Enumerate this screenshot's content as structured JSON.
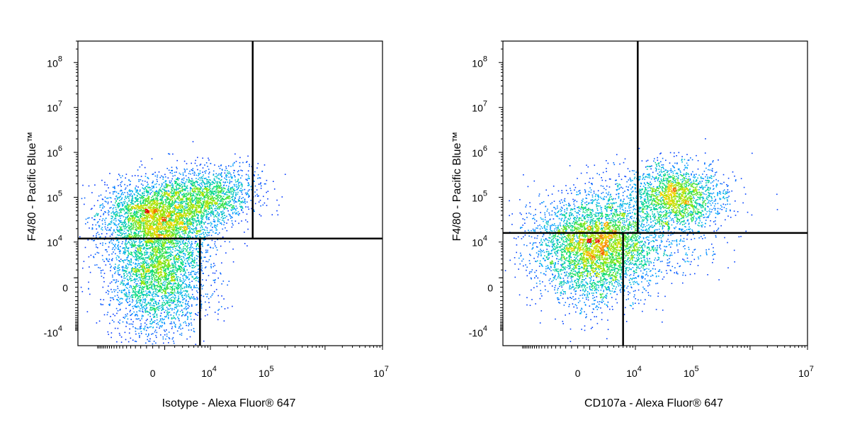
{
  "chart_data": [
    {
      "type": "scatter",
      "subtype": "flow-cytometry-density-quadrant-plot",
      "xlabel": "Isotype - Alexa Fluor® 647",
      "ylabel": "F4/80 - Pacific Blue™",
      "x_scale": "biexponential",
      "y_scale": "biexponential",
      "xlim": [
        -20000,
        10000000
      ],
      "ylim": [
        -20000,
        300000000
      ],
      "x_ticks": [
        {
          "value": 0,
          "base": "0",
          "exp": ""
        },
        {
          "value": 10000,
          "base": "10",
          "exp": "4"
        },
        {
          "value": 100000,
          "base": "10",
          "exp": "5"
        },
        {
          "value": 10000000,
          "base": "10",
          "exp": "7"
        }
      ],
      "y_ticks": [
        {
          "value": -10000,
          "base": "-10",
          "exp": "4"
        },
        {
          "value": 0,
          "base": "0",
          "exp": ""
        },
        {
          "value": 10000,
          "base": "10",
          "exp": "4"
        },
        {
          "value": 100000,
          "base": "10",
          "exp": "5"
        },
        {
          "value": 1000000,
          "base": "10",
          "exp": "6"
        },
        {
          "value": 10000000,
          "base": "10",
          "exp": "7"
        },
        {
          "value": 100000000,
          "base": "10",
          "exp": "8"
        }
      ],
      "quadrant_gate": {
        "x_upper": 55000,
        "x_lower": 6500,
        "y": 12000
      },
      "populations": [
        {
          "x_center": 600,
          "y_center": 45000,
          "x_spread": 0.38,
          "y_spread": 0.22,
          "count": 2600
        },
        {
          "x_center": 12000,
          "y_center": 120000,
          "x_spread": 0.3,
          "y_spread": 0.18,
          "count": 1100
        },
        {
          "x_center": 350,
          "y_center": 2500,
          "x_spread": 0.33,
          "y_spread": 0.45,
          "count": 3600
        }
      ],
      "grid": false,
      "legend": "none"
    },
    {
      "type": "scatter",
      "subtype": "flow-cytometry-density-quadrant-plot",
      "xlabel": "CD107a - Alexa Fluor® 647",
      "ylabel": "F4/80 - Pacific Blue™",
      "x_scale": "biexponential",
      "y_scale": "biexponential",
      "xlim": [
        -20000,
        10000000
      ],
      "ylim": [
        -20000,
        300000000
      ],
      "x_ticks": [
        {
          "value": 0,
          "base": "0",
          "exp": ""
        },
        {
          "value": 10000,
          "base": "10",
          "exp": "4"
        },
        {
          "value": 100000,
          "base": "10",
          "exp": "5"
        },
        {
          "value": 10000000,
          "base": "10",
          "exp": "7"
        }
      ],
      "y_ticks": [
        {
          "value": -10000,
          "base": "-10",
          "exp": "4"
        },
        {
          "value": 0,
          "base": "0",
          "exp": ""
        },
        {
          "value": 10000,
          "base": "10",
          "exp": "4"
        },
        {
          "value": 100000,
          "base": "10",
          "exp": "5"
        },
        {
          "value": 1000000,
          "base": "10",
          "exp": "6"
        },
        {
          "value": 10000000,
          "base": "10",
          "exp": "7"
        },
        {
          "value": 100000000,
          "base": "10",
          "exp": "8"
        }
      ],
      "quadrant_gate": {
        "x_upper": 11000,
        "x_lower": 6000,
        "y": 16000
      },
      "populations": [
        {
          "x_center": 1500,
          "y_center": 8000,
          "x_spread": 0.4,
          "y_spread": 0.35,
          "count": 4200
        },
        {
          "x_center": 50000,
          "y_center": 110000,
          "x_spread": 0.3,
          "y_spread": 0.22,
          "count": 1800
        },
        {
          "x_center": 20000,
          "y_center": 20000,
          "x_spread": 0.5,
          "y_spread": 0.4,
          "count": 400
        }
      ],
      "grid": false,
      "legend": "none"
    }
  ]
}
